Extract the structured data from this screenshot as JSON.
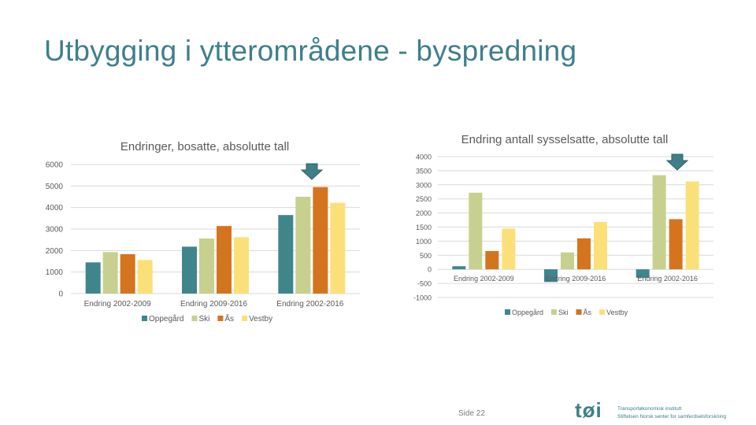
{
  "slide": {
    "title": "Utbygging i ytterområdene - byspredning",
    "page_label": "Side 22",
    "logo_text": "tøi",
    "logo_line1": "Transportøkonomisk institutt",
    "logo_line2": "Stiftelsen Norsk senter for samferdselsforskning"
  },
  "colors": {
    "Oppegård": "#3f868c",
    "Ski": "#c7d08e",
    "Ås": "#d4741f",
    "Vestby": "#fbe07a",
    "arrow": "#3e7f8a",
    "grid": "#d9d9d9",
    "text": "#595959"
  },
  "chart_data": [
    {
      "type": "bar",
      "title": "Endringer, bosatte, absolutte tall",
      "categories": [
        "Endring 2002-2009",
        "Endring 2009-2016",
        "Endring 2002-2016"
      ],
      "series": [
        {
          "name": "Oppegård",
          "values": [
            1450,
            2180,
            3650
          ]
        },
        {
          "name": "Ski",
          "values": [
            1930,
            2560,
            4500
          ]
        },
        {
          "name": "Ås",
          "values": [
            1830,
            3140,
            4950
          ]
        },
        {
          "name": "Vestby",
          "values": [
            1560,
            2620,
            4220
          ]
        }
      ],
      "ylim": [
        0,
        6000
      ],
      "yticks": [
        0,
        1000,
        2000,
        3000,
        4000,
        5000,
        6000
      ],
      "grid": true,
      "legend": "bottom",
      "marker_on_category": "Endring 2002-2016"
    },
    {
      "type": "bar",
      "title": "Endring antall sysselsatte, absolutte tall",
      "categories": [
        "Endring 2002-2009",
        "Endring 2009-2016",
        "Endring 2002-2016"
      ],
      "series": [
        {
          "name": "Oppegård",
          "values": [
            110,
            -450,
            -300
          ]
        },
        {
          "name": "Ski",
          "values": [
            2720,
            600,
            3340
          ]
        },
        {
          "name": "Ås",
          "values": [
            650,
            1100,
            1780
          ]
        },
        {
          "name": "Vestby",
          "values": [
            1450,
            1680,
            3120
          ]
        }
      ],
      "ylim": [
        -1000,
        4000
      ],
      "yticks": [
        -1000,
        -500,
        0,
        500,
        1000,
        1500,
        2000,
        2500,
        3000,
        3500,
        4000
      ],
      "grid": true,
      "legend": "bottom",
      "marker_on_category": "Endring 2002-2016"
    }
  ]
}
